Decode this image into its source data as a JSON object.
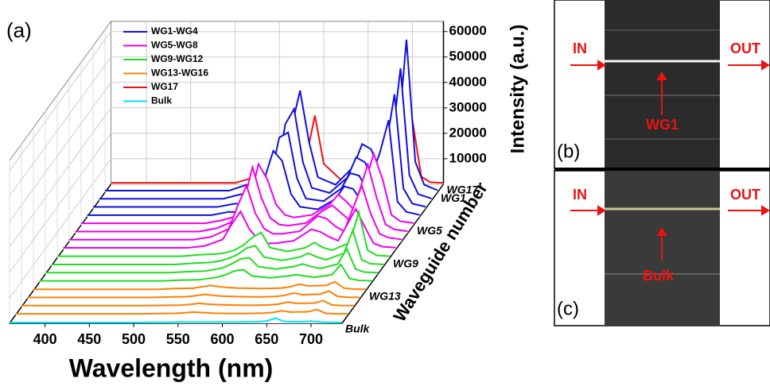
{
  "chart_data": {
    "type": "waterfall",
    "panel_label": "(a)",
    "x_label": "Wavelength (nm)",
    "z_label": "Intensity (a.u.)",
    "depth_label": "Waveguide number",
    "xlim": [
      360,
      735
    ],
    "xticks": [
      400,
      450,
      500,
      550,
      600,
      650,
      700
    ],
    "zlim": [
      0,
      64000
    ],
    "zticks": [
      10000,
      20000,
      30000,
      40000,
      50000,
      60000
    ],
    "grid": true,
    "depth_categories": [
      "WG17",
      "WG1",
      null,
      null,
      null,
      "WG5",
      null,
      null,
      null,
      "WG9",
      null,
      null,
      null,
      "WG13",
      null,
      null,
      null,
      "Bulk"
    ],
    "x": [
      360,
      500,
      520,
      540,
      550,
      560,
      570,
      580,
      590,
      600,
      620,
      640,
      650,
      660,
      670,
      690,
      700,
      710,
      720,
      735
    ],
    "series": [
      {
        "name": "WG1-WG4",
        "color": "#1010e0",
        "traces": [
          [
            700,
            700,
            3000,
            1500,
            3000,
            8000,
            25000,
            40000,
            20000,
            6000,
            3000,
            10000,
            19000,
            17000,
            9000,
            20000,
            60000,
            12000,
            3000,
            800
          ],
          [
            700,
            700,
            2500,
            1500,
            3000,
            9000,
            30000,
            36000,
            15000,
            5000,
            3000,
            9000,
            17000,
            15000,
            8000,
            22000,
            52000,
            10000,
            2500,
            800
          ],
          [
            700,
            700,
            2000,
            1500,
            4000,
            12000,
            28000,
            30000,
            12000,
            4000,
            3000,
            8000,
            14000,
            13000,
            7000,
            24000,
            45000,
            8000,
            2000,
            800
          ],
          [
            700,
            700,
            2000,
            1800,
            5000,
            15000,
            26000,
            22000,
            9000,
            4000,
            3000,
            7000,
            12000,
            11000,
            6000,
            25000,
            38000,
            6000,
            2000,
            800
          ]
        ]
      },
      {
        "name": "WG5-WG8",
        "color": "#ee00ee",
        "traces": [
          [
            700,
            700,
            2000,
            4000,
            9000,
            24000,
            18000,
            8000,
            4000,
            3000,
            4000,
            8000,
            12000,
            9000,
            5000,
            28000,
            18000,
            4000,
            1500,
            800
          ],
          [
            700,
            700,
            2000,
            5000,
            12000,
            26000,
            14000,
            6000,
            3500,
            3000,
            4000,
            9000,
            11000,
            8000,
            5000,
            27000,
            14000,
            3500,
            1500,
            800
          ],
          [
            700,
            700,
            1800,
            5000,
            14000,
            22000,
            11000,
            5000,
            3000,
            3000,
            4000,
            10000,
            9000,
            6000,
            4000,
            22000,
            11000,
            3000,
            1500,
            800
          ],
          [
            700,
            700,
            1500,
            4000,
            10000,
            15000,
            8000,
            4000,
            2500,
            2500,
            3500,
            8000,
            7000,
            5000,
            3500,
            16000,
            9000,
            2500,
            1200,
            800
          ]
        ]
      },
      {
        "name": "WG9-WG12",
        "color": "#22dd22",
        "traces": [
          [
            600,
            600,
            1200,
            1500,
            2000,
            3000,
            5000,
            8000,
            10000,
            4000,
            2500,
            4000,
            6000,
            4000,
            3000,
            6000,
            18000,
            3000,
            1000,
            600
          ],
          [
            600,
            600,
            1100,
            1400,
            2000,
            3000,
            4500,
            7000,
            8000,
            3500,
            2200,
            3500,
            5000,
            3500,
            2500,
            5000,
            14000,
            2500,
            900,
            600
          ],
          [
            600,
            600,
            1000,
            1200,
            1800,
            2500,
            4000,
            6000,
            6500,
            3000,
            2000,
            3000,
            4000,
            3000,
            2200,
            4000,
            10000,
            2000,
            800,
            600
          ],
          [
            600,
            600,
            900,
            1000,
            1500,
            2000,
            3000,
            4500,
            5000,
            2500,
            1800,
            2500,
            3000,
            2500,
            2000,
            3000,
            7000,
            1500,
            800,
            600
          ]
        ]
      },
      {
        "name": "WG13-WG16",
        "color": "#ff8000",
        "traces": [
          [
            500,
            500,
            800,
            900,
            1500,
            2000,
            1500,
            1200,
            1000,
            900,
            800,
            1000,
            1500,
            2500,
            1800,
            2000,
            3500,
            1000,
            600,
            500
          ],
          [
            500,
            500,
            700,
            800,
            1200,
            1700,
            1300,
            1000,
            900,
            800,
            700,
            900,
            1300,
            2200,
            1600,
            1800,
            3000,
            900,
            600,
            500
          ],
          [
            500,
            500,
            600,
            700,
            1000,
            1400,
            1100,
            900,
            800,
            700,
            650,
            800,
            1100,
            1900,
            1400,
            1500,
            2500,
            800,
            550,
            500
          ],
          [
            500,
            500,
            600,
            700,
            900,
            1200,
            1000,
            800,
            700,
            650,
            600,
            750,
            1000,
            1700,
            1200,
            1300,
            2200,
            700,
            500,
            500
          ]
        ]
      },
      {
        "name": "WG17",
        "color": "#ee1111",
        "traces": [
          [
            500,
            500,
            2500,
            600,
            800,
            1500,
            4000,
            10000,
            27000,
            8000,
            1500,
            2000,
            6000,
            9000,
            6000,
            2500,
            25000,
            3000,
            800,
            500
          ]
        ]
      },
      {
        "name": "Bulk",
        "color": "#00e5ee",
        "traces": [
          [
            300,
            300,
            400,
            400,
            500,
            500,
            500,
            500,
            500,
            500,
            500,
            600,
            900,
            2000,
            700,
            600,
            800,
            500,
            400,
            300
          ]
        ]
      }
    ]
  },
  "photos": {
    "b": {
      "label": "(b)",
      "in": "IN",
      "out": "OUT",
      "marker": "WG1"
    },
    "c": {
      "label": "(c)",
      "in": "IN",
      "out": "OUT",
      "marker": "Bulk"
    }
  }
}
